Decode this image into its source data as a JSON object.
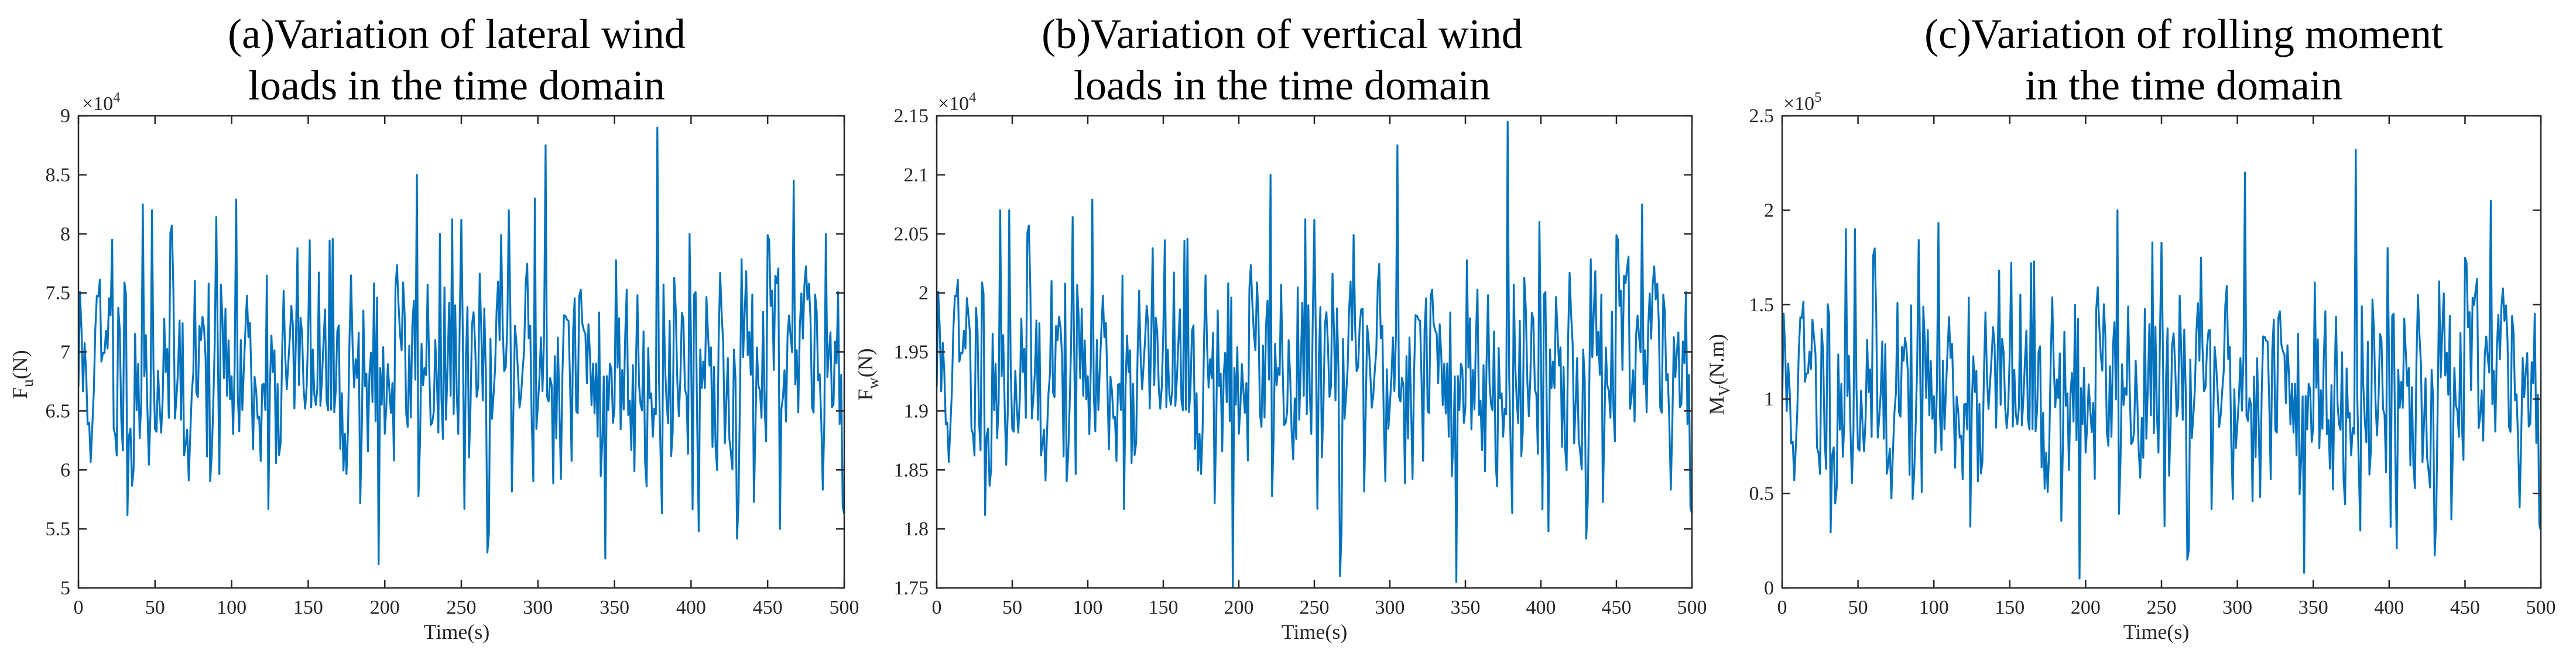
{
  "figure": {
    "line_color": "#0072BD",
    "axis_color": "#262626",
    "background": "#ffffff"
  },
  "chart_data": [
    {
      "type": "line",
      "title_line1": "(a)Variation of lateral wind",
      "title_line2": "loads in the time domain",
      "xlabel": "Time(s)",
      "ylabel": "F",
      "ylabel_sub": "u",
      "ylabel_unit": "(N)",
      "y_scale_base": "×10",
      "y_scale_exp": "4",
      "xlim": [
        0,
        500
      ],
      "ylim": [
        5,
        9
      ],
      "xticks": [
        0,
        50,
        100,
        150,
        200,
        250,
        300,
        350,
        400,
        450,
        500
      ],
      "xtick_labels": [
        "0",
        "50",
        "100",
        "150",
        "200",
        "250",
        "300",
        "350",
        "400",
        "450",
        "500"
      ],
      "yticks": [
        5,
        5.5,
        6,
        6.5,
        7,
        7.5,
        8,
        8.5,
        9
      ],
      "ytick_labels": [
        "5",
        "5.5",
        "6",
        "6.5",
        "7",
        "7.5",
        "8",
        "8.5",
        "9"
      ],
      "series": [
        {
          "name": "Fu",
          "dt": 1,
          "mean": 6.85,
          "std": 0.62,
          "seed": 11,
          "peaks": [
            [
              22,
              7.95
            ],
            [
              42,
              8.25
            ],
            [
              48,
              8.2
            ],
            [
              196,
              5.2
            ],
            [
              221,
              8.5
            ],
            [
              236,
              8.0
            ],
            [
              267,
              5.3
            ],
            [
              281,
              8.2
            ],
            [
              298,
              8.3
            ],
            [
              305,
              8.75
            ],
            [
              344,
              5.25
            ],
            [
              378,
              8.9
            ],
            [
              399,
              8.0
            ],
            [
              458,
              5.5
            ],
            [
              467,
              8.45
            ],
            [
              488,
              8.0
            ]
          ]
        }
      ]
    },
    {
      "type": "line",
      "title_line1": "(b)Variation of vertical wind",
      "title_line2": "loads in the time domain",
      "xlabel": "Time(s)",
      "ylabel": "F",
      "ylabel_sub": "w",
      "ylabel_unit": "(N)",
      "y_scale_base": "×10",
      "y_scale_exp": "4",
      "xlim": [
        0,
        500
      ],
      "ylim": [
        1.75,
        2.15
      ],
      "xticks": [
        0,
        50,
        100,
        150,
        200,
        250,
        300,
        350,
        400,
        450,
        500
      ],
      "xtick_labels": [
        "0",
        "50",
        "100",
        "150",
        "200",
        "250",
        "300",
        "350",
        "400",
        "450",
        "500"
      ],
      "yticks": [
        1.75,
        1.8,
        1.85,
        1.9,
        1.95,
        2.0,
        2.05,
        2.1,
        2.15
      ],
      "ytick_labels": [
        "1.75",
        "1.8",
        "1.85",
        "1.9",
        "1.95",
        "2",
        "2.05",
        "2.1",
        "2.15"
      ],
      "series": [
        {
          "name": "Fw",
          "dt": 1,
          "mean": 1.935,
          "std": 0.062,
          "seed": 11,
          "peaks": [
            [
              42,
              2.07
            ],
            [
              48,
              2.07
            ],
            [
              196,
              1.75
            ],
            [
              221,
              2.1
            ],
            [
              267,
              1.76
            ],
            [
              305,
              2.125
            ],
            [
              344,
              1.755
            ],
            [
              378,
              2.145
            ],
            [
              399,
              2.06
            ],
            [
              467,
              2.075
            ]
          ]
        }
      ]
    },
    {
      "type": "line",
      "title_line1": "(c)Variation of rolling moment",
      "title_line2": "in the time domain",
      "xlabel": "Time(s)",
      "ylabel": "M",
      "ylabel_sub": "V",
      "ylabel_unit": "(N.m)",
      "y_scale_base": "×10",
      "y_scale_exp": "5",
      "xlim": [
        0,
        500
      ],
      "ylim": [
        0,
        2.5
      ],
      "xticks": [
        0,
        50,
        100,
        150,
        200,
        250,
        300,
        350,
        400,
        450,
        500
      ],
      "xtick_labels": [
        "0",
        "50",
        "100",
        "150",
        "200",
        "250",
        "300",
        "350",
        "400",
        "450",
        "500"
      ],
      "yticks": [
        0,
        0.5,
        1,
        1.5,
        2,
        2.5
      ],
      "ytick_labels": [
        "0",
        "0.5",
        "1",
        "1.5",
        "2",
        "2.5"
      ],
      "series": [
        {
          "name": "Mv",
          "dt": 1,
          "mean": 1.05,
          "std": 0.38,
          "seed": 11,
          "peaks": [
            [
              42,
              1.9
            ],
            [
              48,
              1.9
            ],
            [
              196,
              0.05
            ],
            [
              221,
              2.0
            ],
            [
              267,
              0.15
            ],
            [
              305,
              2.2
            ],
            [
              344,
              0.08
            ],
            [
              378,
              2.32
            ],
            [
              399,
              1.8
            ],
            [
              467,
              2.05
            ]
          ]
        }
      ]
    }
  ]
}
